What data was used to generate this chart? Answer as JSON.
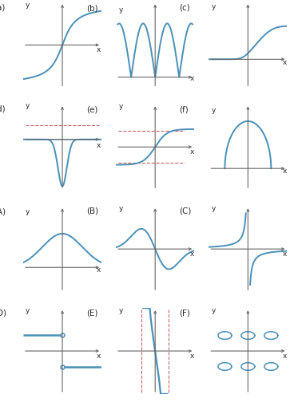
{
  "fig_width": 3.63,
  "fig_height": 5.04,
  "dpi": 100,
  "label_color": "#2a2a2a",
  "curve_color": "#4a90b8",
  "axis_color": "#666666",
  "dashed_color": "#d06060",
  "bg_color": "#ffffff",
  "panel_fontsize": 7.5,
  "axis_label_fontsize": 6.5,
  "panels": [
    {
      "row": 0,
      "col": 0,
      "label": "(a)"
    },
    {
      "row": 0,
      "col": 1,
      "label": "(b)"
    },
    {
      "row": 0,
      "col": 2,
      "label": "(c)"
    },
    {
      "row": 1,
      "col": 0,
      "label": "(d)"
    },
    {
      "row": 1,
      "col": 1,
      "label": "(e)"
    },
    {
      "row": 1,
      "col": 2,
      "label": "(f)"
    },
    {
      "row": 2,
      "col": 0,
      "label": "(A)"
    },
    {
      "row": 2,
      "col": 1,
      "label": "(B)"
    },
    {
      "row": 2,
      "col": 2,
      "label": "(C)"
    },
    {
      "row": 3,
      "col": 0,
      "label": "(D)"
    },
    {
      "row": 3,
      "col": 1,
      "label": "(E)"
    },
    {
      "row": 3,
      "col": 2,
      "label": "(F)"
    }
  ]
}
